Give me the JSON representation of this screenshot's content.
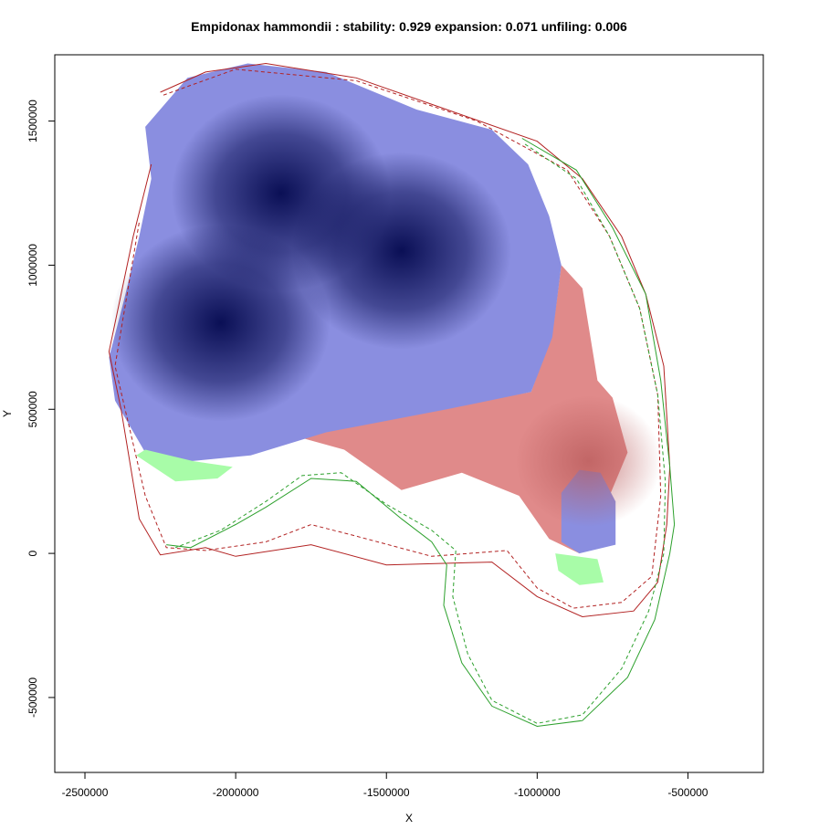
{
  "chart_data": {
    "type": "heatmap",
    "title": "Empidonax hammondii : stability: 0.929 expansion: 0.071 unfiling: 0.006",
    "xlabel": "X",
    "ylabel": "Y",
    "xlim": [
      -2600000,
      -250000
    ],
    "ylim": [
      -760000,
      1730000
    ],
    "x_ticks": [
      -2500000,
      -2000000,
      -1500000,
      -1000000,
      -500000
    ],
    "x_tick_labels": [
      "-2500000",
      "-2000000",
      "-1500000",
      "-1000000",
      "-500000"
    ],
    "y_ticks": [
      -500000,
      0,
      500000,
      1000000,
      1500000
    ],
    "y_tick_labels": [
      "-500000",
      "0",
      "500000",
      "1000000",
      "1500000"
    ],
    "colors": {
      "stability": "#8a8ee0",
      "stability_core": "#0a0f55",
      "expansion": "#e08a8a",
      "expansion_core": "#c87070",
      "unfilling": "#a8fca8",
      "outline_native": "#b22222",
      "outline_invaded": "#2ca02c"
    },
    "regions": {
      "stability": [
        [
          [
            -2300000,
            1480000
          ],
          [
            -2160000,
            1650000
          ],
          [
            -1960000,
            1700000
          ],
          [
            -1700000,
            1670000
          ],
          [
            -1400000,
            1540000
          ],
          [
            -1150000,
            1470000
          ],
          [
            -1030000,
            1350000
          ],
          [
            -960000,
            1170000
          ],
          [
            -920000,
            1000000
          ],
          [
            -950000,
            750000
          ],
          [
            -1020000,
            560000
          ],
          [
            -1300000,
            500000
          ],
          [
            -1700000,
            420000
          ],
          [
            -1950000,
            340000
          ],
          [
            -2150000,
            320000
          ],
          [
            -2300000,
            350000
          ],
          [
            -2400000,
            530000
          ],
          [
            -2420000,
            680000
          ],
          [
            -2370000,
            880000
          ],
          [
            -2320000,
            1100000
          ],
          [
            -2280000,
            1300000
          ]
        ],
        [
          [
            -860000,
            290000
          ],
          [
            -790000,
            280000
          ],
          [
            -740000,
            180000
          ],
          [
            -740000,
            30000
          ],
          [
            -860000,
            0
          ],
          [
            -920000,
            40000
          ],
          [
            -920000,
            210000
          ]
        ]
      ],
      "expansion": [
        [
          [
            -1640000,
            500000
          ],
          [
            -1380000,
            490000
          ],
          [
            -1020000,
            560000
          ],
          [
            -950000,
            760000
          ],
          [
            -920000,
            1000000
          ],
          [
            -850000,
            920000
          ],
          [
            -800000,
            600000
          ],
          [
            -750000,
            540000
          ],
          [
            -700000,
            350000
          ],
          [
            -780000,
            150000
          ],
          [
            -860000,
            0
          ],
          [
            -960000,
            50000
          ],
          [
            -1060000,
            200000
          ],
          [
            -1250000,
            280000
          ],
          [
            -1450000,
            220000
          ],
          [
            -1640000,
            360000
          ],
          [
            -1780000,
            400000
          ]
        ]
      ],
      "unfilling": [
        [
          [
            -2330000,
            340000
          ],
          [
            -2200000,
            250000
          ],
          [
            -2060000,
            260000
          ],
          [
            -2010000,
            300000
          ],
          [
            -2140000,
            320000
          ],
          [
            -2300000,
            360000
          ]
        ],
        [
          [
            -940000,
            0
          ],
          [
            -800000,
            -20000
          ],
          [
            -780000,
            -100000
          ],
          [
            -860000,
            -110000
          ],
          [
            -930000,
            -60000
          ]
        ]
      ]
    },
    "outlines": {
      "native_solid": [
        [
          -2250000,
          1600000
        ],
        [
          -2100000,
          1670000
        ],
        [
          -1900000,
          1700000
        ],
        [
          -1600000,
          1650000
        ],
        [
          -1300000,
          1540000
        ],
        [
          -1000000,
          1430000
        ],
        [
          -850000,
          1300000
        ],
        [
          -720000,
          1100000
        ],
        [
          -640000,
          900000
        ],
        [
          -580000,
          650000
        ],
        [
          -560000,
          300000
        ],
        [
          -570000,
          100000
        ],
        [
          -600000,
          -100000
        ],
        [
          -680000,
          -200000
        ],
        [
          -850000,
          -220000
        ],
        [
          -1000000,
          -150000
        ],
        [
          -1150000,
          -30000
        ],
        [
          -1500000,
          -40000
        ],
        [
          -1750000,
          30000
        ],
        [
          -2000000,
          -10000
        ],
        [
          -2100000,
          20000
        ],
        [
          -2250000,
          -5000
        ],
        [
          -2320000,
          120000
        ],
        [
          -2380000,
          500000
        ],
        [
          -2420000,
          700000
        ],
        [
          -2340000,
          1100000
        ],
        [
          -2280000,
          1350000
        ]
      ],
      "native_dashed": [
        [
          -2240000,
          1590000
        ],
        [
          -2000000,
          1680000
        ],
        [
          -1600000,
          1640000
        ],
        [
          -1200000,
          1500000
        ],
        [
          -900000,
          1330000
        ],
        [
          -760000,
          1100000
        ],
        [
          -660000,
          850000
        ],
        [
          -600000,
          550000
        ],
        [
          -590000,
          200000
        ],
        [
          -620000,
          -80000
        ],
        [
          -720000,
          -170000
        ],
        [
          -880000,
          -190000
        ],
        [
          -1000000,
          -120000
        ],
        [
          -1100000,
          10000
        ],
        [
          -1350000,
          -10000
        ],
        [
          -1600000,
          60000
        ],
        [
          -1750000,
          100000
        ],
        [
          -1900000,
          40000
        ],
        [
          -2100000,
          10000
        ],
        [
          -2230000,
          20000
        ],
        [
          -2300000,
          200000
        ],
        [
          -2400000,
          650000
        ],
        [
          -2320000,
          1150000
        ]
      ],
      "invaded_solid": [
        [
          -1050000,
          1440000
        ],
        [
          -870000,
          1330000
        ],
        [
          -750000,
          1130000
        ],
        [
          -640000,
          900000
        ],
        [
          -590000,
          600000
        ],
        [
          -560000,
          300000
        ],
        [
          -545000,
          100000
        ],
        [
          -560000,
          0
        ],
        [
          -610000,
          -230000
        ],
        [
          -700000,
          -430000
        ],
        [
          -850000,
          -580000
        ],
        [
          -1000000,
          -600000
        ],
        [
          -1150000,
          -530000
        ],
        [
          -1250000,
          -380000
        ],
        [
          -1310000,
          -180000
        ],
        [
          -1300000,
          -40000
        ],
        [
          -1350000,
          40000
        ],
        [
          -1450000,
          120000
        ],
        [
          -1600000,
          250000
        ],
        [
          -1750000,
          260000
        ],
        [
          -1900000,
          160000
        ],
        [
          -2000000,
          100000
        ],
        [
          -2150000,
          20000
        ],
        [
          -2230000,
          30000
        ]
      ],
      "invaded_dashed": [
        [
          -1040000,
          1420000
        ],
        [
          -870000,
          1300000
        ],
        [
          -760000,
          1100000
        ],
        [
          -660000,
          850000
        ],
        [
          -600000,
          550000
        ],
        [
          -575000,
          250000
        ],
        [
          -580000,
          0
        ],
        [
          -630000,
          -200000
        ],
        [
          -720000,
          -400000
        ],
        [
          -850000,
          -560000
        ],
        [
          -1000000,
          -590000
        ],
        [
          -1150000,
          -510000
        ],
        [
          -1230000,
          -350000
        ],
        [
          -1280000,
          -150000
        ],
        [
          -1270000,
          10000
        ],
        [
          -1350000,
          80000
        ],
        [
          -1500000,
          170000
        ],
        [
          -1650000,
          280000
        ],
        [
          -1780000,
          270000
        ],
        [
          -1900000,
          180000
        ],
        [
          -2050000,
          80000
        ],
        [
          -2200000,
          20000
        ]
      ]
    },
    "hotspots": [
      {
        "x": -1850000,
        "y": 1250000,
        "kind": "stability"
      },
      {
        "x": -1450000,
        "y": 1050000,
        "kind": "stability"
      },
      {
        "x": -2050000,
        "y": 800000,
        "kind": "stability"
      },
      {
        "x": -830000,
        "y": 320000,
        "kind": "expansion"
      }
    ]
  }
}
